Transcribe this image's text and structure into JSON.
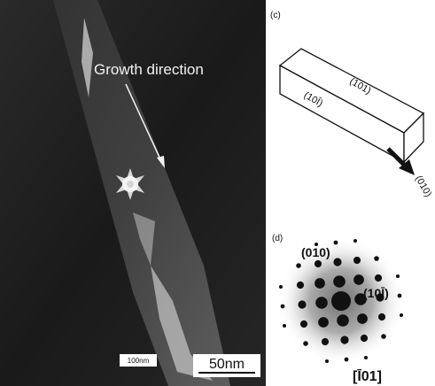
{
  "figure": {
    "image_panel": {
      "annotation": "Growth direction",
      "scale_bar_small": "100nm",
      "scale_bar": "50nm"
    },
    "panel_c": {
      "label": "(c)",
      "top_face": "(101)",
      "side_face": "(10Ī)",
      "direction": "(010)"
    },
    "panel_d": {
      "label": "(d)",
      "spot_top": "(010)",
      "spot_right": "(10Ī)",
      "zone_axis": "[Ī01]"
    }
  }
}
